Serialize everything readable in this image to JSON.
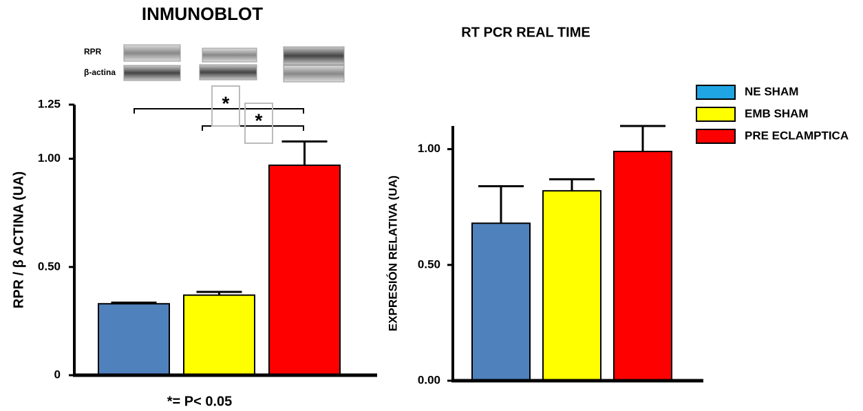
{
  "chart_data": [
    {
      "type": "bar",
      "title": "INMUNOBLOT",
      "ylabel": "RPR / β ACTINA (UA)",
      "blot_labels": [
        "RPR",
        "β-actina"
      ],
      "annotation": "*= P< 0.05",
      "significance": [
        "*",
        "*"
      ],
      "ylim": [
        0,
        1.25
      ],
      "yticks": [
        0,
        {
          "value": 0.5,
          "label": "0.50"
        },
        {
          "value": 1.0,
          "label": "1.00"
        },
        1.25
      ],
      "series": [
        {
          "color": "#4f81bd",
          "values": [
            0.33
          ],
          "errors": [
            0.005
          ]
        },
        {
          "color": "#ffff00",
          "values": [
            0.37
          ],
          "errors": [
            0.015
          ]
        },
        {
          "color": "#ff0000",
          "values": [
            0.97
          ],
          "errors": [
            0.11
          ]
        }
      ]
    },
    {
      "type": "bar",
      "title": "RT PCR REAL TIME",
      "ylabel": "EXPRESIÓN RELATIVA (UA)",
      "ylim": [
        0,
        1.1
      ],
      "yticks": [
        {
          "value": 0,
          "label": "0.00"
        },
        {
          "value": 0.5,
          "label": "0.50"
        },
        {
          "value": 1.0,
          "label": "1.00"
        }
      ],
      "legend": "upper right",
      "series": [
        {
          "name": "NE SHAM",
          "color": "#4f81bd",
          "legend_color": "#1fa5e3",
          "values": [
            0.68
          ],
          "errors": [
            0.16
          ]
        },
        {
          "name": "EMB SHAM",
          "color": "#ffff00",
          "legend_color": "#ffff00",
          "values": [
            0.82
          ],
          "errors": [
            0.05
          ]
        },
        {
          "name": "PRE ECLAMPTICA",
          "color": "#ff0000",
          "legend_color": "#ff0000",
          "values": [
            0.99
          ],
          "errors": [
            0.11
          ]
        }
      ]
    }
  ]
}
